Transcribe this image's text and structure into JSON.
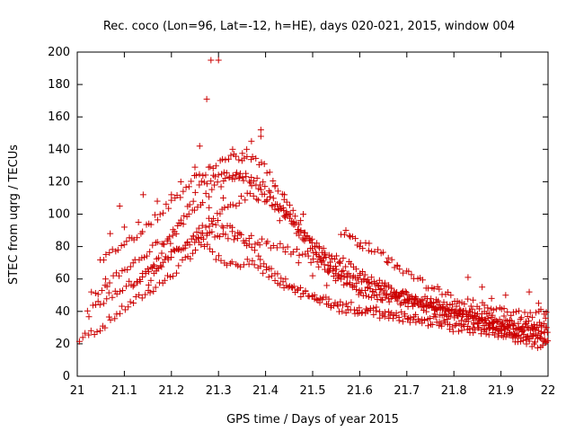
{
  "chart_data": {
    "type": "scatter",
    "title": "Rec. coco (Lon=96, Lat=-12, h=HE), days 020-021, 2015, window 004",
    "xlabel": "GPS time / Days of year 2015",
    "ylabel": "STEC from uqrg / TECUs",
    "xlim": [
      21,
      22
    ],
    "ylim": [
      0,
      200
    ],
    "x_ticks": [
      21,
      21.1,
      21.2,
      21.3,
      21.4,
      21.5,
      21.6,
      21.7,
      21.8,
      21.9,
      22
    ],
    "x_tick_labels": [
      "21",
      "21.1",
      "21.2",
      "21.3",
      "21.4",
      "21.5",
      "21.6",
      "21.7",
      "21.8",
      "21.9",
      "22"
    ],
    "y_ticks": [
      0,
      20,
      40,
      60,
      80,
      100,
      120,
      140,
      160,
      180,
      200
    ],
    "y_tick_labels": [
      "0",
      "20",
      "40",
      "60",
      "80",
      "100",
      "120",
      "140",
      "160",
      "180",
      "200"
    ],
    "grid": false,
    "marker": "plus",
    "color": "#cc0000",
    "arc_sample_step": 0.006,
    "arcs": [
      [
        [
          21.0,
          22
        ],
        [
          21.05,
          30
        ],
        [
          21.1,
          42
        ],
        [
          21.15,
          52
        ],
        [
          21.2,
          62
        ],
        [
          21.25,
          78
        ],
        [
          21.28,
          90
        ],
        [
          21.3,
          95
        ],
        [
          21.33,
          90
        ],
        [
          21.38,
          78
        ],
        [
          21.42,
          62
        ],
        [
          21.5,
          48
        ],
        [
          21.6,
          42
        ],
        [
          21.7,
          38
        ],
        [
          21.8,
          32
        ],
        [
          21.9,
          26
        ],
        [
          21.97,
          20
        ],
        [
          22.0,
          20
        ]
      ],
      [
        [
          21.02,
          38
        ],
        [
          21.06,
          48
        ],
        [
          21.12,
          58
        ],
        [
          21.18,
          70
        ],
        [
          21.23,
          82
        ],
        [
          21.28,
          96
        ],
        [
          21.33,
          106
        ],
        [
          21.37,
          112
        ],
        [
          21.4,
          110
        ],
        [
          21.45,
          100
        ],
        [
          21.5,
          80
        ],
        [
          21.55,
          60
        ],
        [
          21.6,
          52
        ],
        [
          21.7,
          45
        ],
        [
          21.8,
          38
        ],
        [
          21.9,
          30
        ],
        [
          21.98,
          24
        ],
        [
          22.0,
          25
        ]
      ],
      [
        [
          21.04,
          50
        ],
        [
          21.08,
          62
        ],
        [
          21.14,
          74
        ],
        [
          21.2,
          88
        ],
        [
          21.25,
          104
        ],
        [
          21.3,
          118
        ],
        [
          21.34,
          124
        ],
        [
          21.38,
          122
        ],
        [
          21.42,
          110
        ],
        [
          21.46,
          92
        ],
        [
          21.5,
          75
        ],
        [
          21.56,
          60
        ],
        [
          21.64,
          50
        ],
        [
          21.72,
          44
        ],
        [
          21.82,
          36
        ],
        [
          21.92,
          28
        ],
        [
          22.0,
          24
        ]
      ],
      [
        [
          21.05,
          70
        ],
        [
          21.08,
          78
        ],
        [
          21.12,
          86
        ],
        [
          21.16,
          96
        ],
        [
          21.21,
          110
        ],
        [
          21.25,
          122
        ],
        [
          21.3,
          132
        ],
        [
          21.35,
          136
        ],
        [
          21.39,
          132
        ],
        [
          21.43,
          115
        ],
        [
          21.47,
          96
        ],
        [
          21.52,
          75
        ],
        [
          21.58,
          64
        ],
        [
          21.65,
          55
        ],
        [
          21.72,
          48
        ],
        [
          21.8,
          40
        ],
        [
          21.9,
          32
        ],
        [
          22.0,
          28
        ]
      ],
      [
        [
          21.12,
          55
        ],
        [
          21.16,
          70
        ],
        [
          21.2,
          85
        ],
        [
          21.23,
          100
        ],
        [
          21.26,
          118
        ],
        [
          21.3,
          126
        ],
        [
          21.34,
          125
        ],
        [
          21.38,
          118
        ],
        [
          21.42,
          105
        ],
        [
          21.47,
          90
        ],
        [
          21.52,
          78
        ],
        [
          21.58,
          68
        ],
        [
          21.64,
          58
        ],
        [
          21.7,
          50
        ],
        [
          21.8,
          42
        ],
        [
          21.9,
          35
        ],
        [
          22.0,
          30
        ]
      ],
      [
        [
          21.15,
          58
        ],
        [
          21.2,
          75
        ],
        [
          21.25,
          86
        ],
        [
          21.28,
          80
        ],
        [
          21.3,
          72
        ],
        [
          21.33,
          68
        ],
        [
          21.37,
          72
        ],
        [
          21.4,
          64
        ],
        [
          21.43,
          56
        ],
        [
          21.47,
          52
        ],
        [
          21.52,
          46
        ],
        [
          21.58,
          40
        ],
        [
          21.65,
          38
        ],
        [
          21.72,
          35
        ],
        [
          21.8,
          30
        ],
        [
          21.9,
          26
        ],
        [
          22.0,
          22
        ]
      ],
      [
        [
          21.25,
          85
        ],
        [
          21.3,
          88
        ],
        [
          21.35,
          86
        ],
        [
          21.4,
          82
        ],
        [
          21.45,
          78
        ],
        [
          21.5,
          72
        ],
        [
          21.55,
          64
        ],
        [
          21.6,
          58
        ],
        [
          21.65,
          52
        ],
        [
          21.7,
          48
        ],
        [
          21.75,
          44
        ],
        [
          21.8,
          40
        ],
        [
          21.85,
          36
        ],
        [
          21.9,
          33
        ],
        [
          21.95,
          30
        ],
        [
          22.0,
          34
        ]
      ],
      [
        [
          21.56,
          90
        ],
        [
          21.6,
          82
        ],
        [
          21.65,
          74
        ],
        [
          21.7,
          64
        ],
        [
          21.75,
          55
        ],
        [
          21.8,
          48
        ],
        [
          21.85,
          44
        ],
        [
          21.9,
          40
        ],
        [
          21.95,
          38
        ],
        [
          22.0,
          40
        ]
      ]
    ],
    "points": [
      [
        21.284,
        195
      ],
      [
        21.3,
        195
      ],
      [
        21.275,
        171
      ],
      [
        21.26,
        142
      ],
      [
        21.39,
        152
      ],
      [
        21.39,
        148
      ],
      [
        21.37,
        145
      ],
      [
        21.36,
        140
      ],
      [
        21.33,
        140
      ],
      [
        21.35,
        133
      ],
      [
        21.25,
        129
      ],
      [
        21.22,
        120
      ],
      [
        21.2,
        112
      ],
      [
        21.17,
        108
      ],
      [
        21.14,
        112
      ],
      [
        21.09,
        105
      ],
      [
        21.44,
        112
      ],
      [
        21.42,
        117
      ],
      [
        21.45,
        100
      ],
      [
        21.48,
        100
      ],
      [
        21.6,
        80
      ],
      [
        21.58,
        86
      ],
      [
        21.62,
        82
      ],
      [
        21.66,
        70
      ],
      [
        21.68,
        68
      ],
      [
        21.83,
        61
      ],
      [
        21.86,
        55
      ],
      [
        21.91,
        50
      ],
      [
        21.88,
        48
      ],
      [
        21.96,
        52
      ],
      [
        21.98,
        45
      ],
      [
        21.1,
        92
      ],
      [
        21.13,
        95
      ],
      [
        21.07,
        88
      ],
      [
        21.03,
        52
      ],
      [
        21.06,
        60
      ],
      [
        21.28,
        104
      ],
      [
        21.31,
        110
      ],
      [
        21.43,
        96
      ],
      [
        21.5,
        62
      ],
      [
        21.47,
        70
      ],
      [
        21.53,
        56
      ]
    ]
  }
}
